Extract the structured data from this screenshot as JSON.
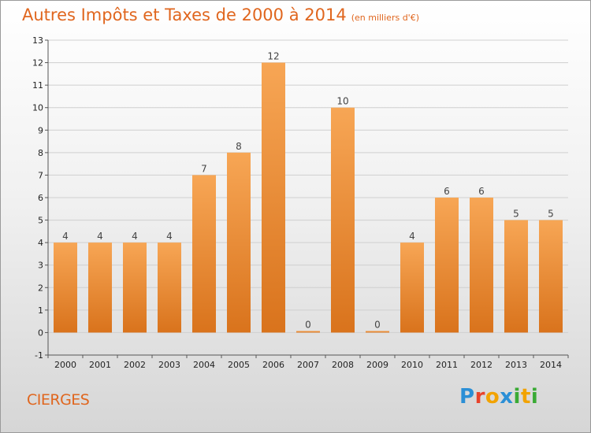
{
  "header": {
    "title": "Autres Impôts et Taxes de 2000 à 2014",
    "unit": "(en milliers d'€)"
  },
  "footer": {
    "commune": "CIERGES",
    "brand_letters": [
      {
        "ch": "P",
        "color": "#2b8fd6"
      },
      {
        "ch": "r",
        "color": "#e8432b"
      },
      {
        "ch": "o",
        "color": "#f2a300"
      },
      {
        "ch": "x",
        "color": "#2b8fd6"
      },
      {
        "ch": "i",
        "color": "#3aaa35"
      },
      {
        "ch": "t",
        "color": "#f2a300"
      },
      {
        "ch": "i",
        "color": "#3aaa35"
      }
    ]
  },
  "chart_data": {
    "type": "bar",
    "title": "Autres Impôts et Taxes de 2000 à 2014",
    "subtitle": "(en milliers d'€)",
    "categories": [
      "2000",
      "2001",
      "2002",
      "2003",
      "2004",
      "2005",
      "2006",
      "2007",
      "2008",
      "2009",
      "2010",
      "2011",
      "2012",
      "2013",
      "2014"
    ],
    "values": [
      4,
      4,
      4,
      4,
      7,
      8,
      12,
      0,
      10,
      0,
      4,
      6,
      6,
      5,
      5
    ],
    "value_labels": [
      "4",
      "4",
      "4",
      "4",
      "7",
      "8",
      "12",
      "0",
      "10",
      "0",
      "4",
      "6",
      "6",
      "5",
      "5"
    ],
    "ylim": [
      -1,
      13
    ],
    "yticks": [
      -1,
      0,
      1,
      2,
      3,
      4,
      5,
      6,
      7,
      8,
      9,
      10,
      11,
      12,
      13
    ],
    "grid": true,
    "bar_color_top": "#f7a655",
    "bar_color_bottom": "#d9731c"
  }
}
